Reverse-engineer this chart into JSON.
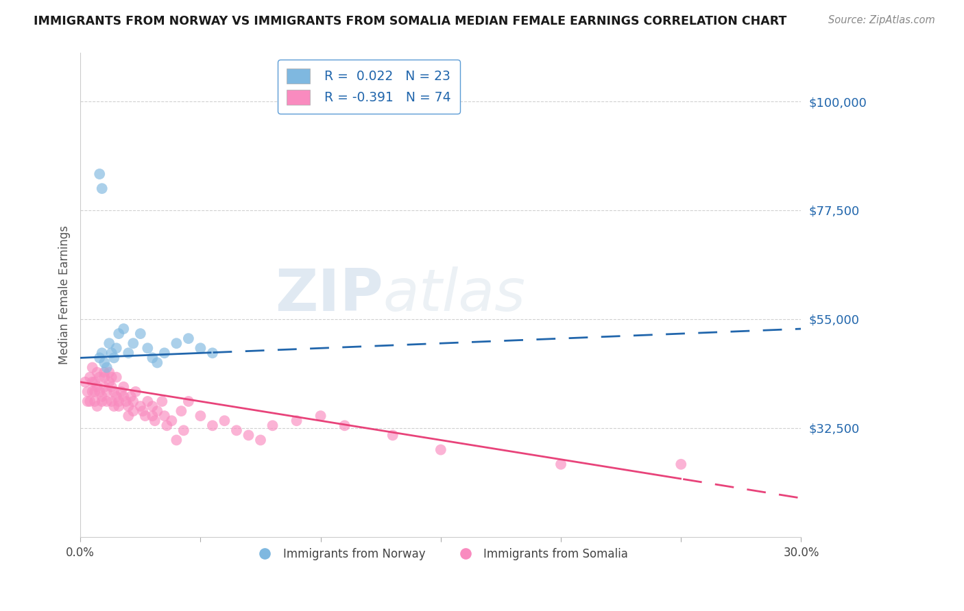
{
  "title": "IMMIGRANTS FROM NORWAY VS IMMIGRANTS FROM SOMALIA MEDIAN FEMALE EARNINGS CORRELATION CHART",
  "source": "Source: ZipAtlas.com",
  "ylabel": "Median Female Earnings",
  "xlim": [
    0.0,
    0.3
  ],
  "ylim": [
    10000,
    110000
  ],
  "yticks": [
    32500,
    55000,
    77500,
    100000
  ],
  "ytick_labels": [
    "$32,500",
    "$55,000",
    "$77,500",
    "$100,000"
  ],
  "xticks": [
    0.0,
    0.05,
    0.1,
    0.15,
    0.2,
    0.25,
    0.3
  ],
  "x_display": [
    "0.0%",
    "",
    "",
    "",
    "",
    "",
    "30.0%"
  ],
  "norway_R": 0.022,
  "norway_N": 23,
  "somalia_R": -0.391,
  "somalia_N": 74,
  "norway_color": "#7fb8e0",
  "somalia_color": "#f98bbf",
  "norway_line_color": "#2166ac",
  "somalia_line_color": "#e8437a",
  "legend_border_color": "#5b9bd5",
  "watermark_zip": "ZIP",
  "watermark_atlas": "atlas",
  "norway_x": [
    0.008,
    0.009,
    0.01,
    0.011,
    0.012,
    0.013,
    0.014,
    0.015,
    0.016,
    0.018,
    0.02,
    0.022,
    0.025,
    0.028,
    0.03,
    0.032,
    0.035,
    0.04,
    0.045,
    0.05,
    0.055,
    0.008,
    0.009
  ],
  "norway_y": [
    47000,
    48000,
    46000,
    45000,
    50000,
    48000,
    47000,
    49000,
    52000,
    53000,
    48000,
    50000,
    52000,
    49000,
    47000,
    46000,
    48000,
    50000,
    51000,
    49000,
    48000,
    85000,
    82000
  ],
  "somalia_x": [
    0.002,
    0.003,
    0.003,
    0.004,
    0.004,
    0.005,
    0.005,
    0.005,
    0.006,
    0.006,
    0.006,
    0.007,
    0.007,
    0.007,
    0.008,
    0.008,
    0.009,
    0.009,
    0.01,
    0.01,
    0.01,
    0.011,
    0.011,
    0.012,
    0.012,
    0.013,
    0.013,
    0.013,
    0.014,
    0.014,
    0.015,
    0.015,
    0.016,
    0.016,
    0.017,
    0.018,
    0.018,
    0.019,
    0.02,
    0.02,
    0.021,
    0.022,
    0.022,
    0.023,
    0.025,
    0.026,
    0.027,
    0.028,
    0.03,
    0.03,
    0.031,
    0.032,
    0.034,
    0.035,
    0.036,
    0.038,
    0.04,
    0.042,
    0.043,
    0.045,
    0.05,
    0.055,
    0.06,
    0.065,
    0.07,
    0.075,
    0.08,
    0.09,
    0.1,
    0.11,
    0.13,
    0.15,
    0.2,
    0.25
  ],
  "somalia_y": [
    42000,
    40000,
    38000,
    43000,
    38000,
    45000,
    42000,
    40000,
    42000,
    40000,
    38000,
    44000,
    41000,
    37000,
    43000,
    40000,
    39000,
    38000,
    44000,
    43000,
    41000,
    40000,
    38000,
    44000,
    42000,
    43000,
    41000,
    38000,
    40000,
    37000,
    43000,
    39000,
    38000,
    37000,
    40000,
    41000,
    39000,
    38000,
    37000,
    35000,
    39000,
    38000,
    36000,
    40000,
    37000,
    36000,
    35000,
    38000,
    35000,
    37000,
    34000,
    36000,
    38000,
    35000,
    33000,
    34000,
    30000,
    36000,
    32000,
    38000,
    35000,
    33000,
    34000,
    32000,
    31000,
    30000,
    33000,
    34000,
    35000,
    33000,
    31000,
    28000,
    25000,
    25000
  ]
}
